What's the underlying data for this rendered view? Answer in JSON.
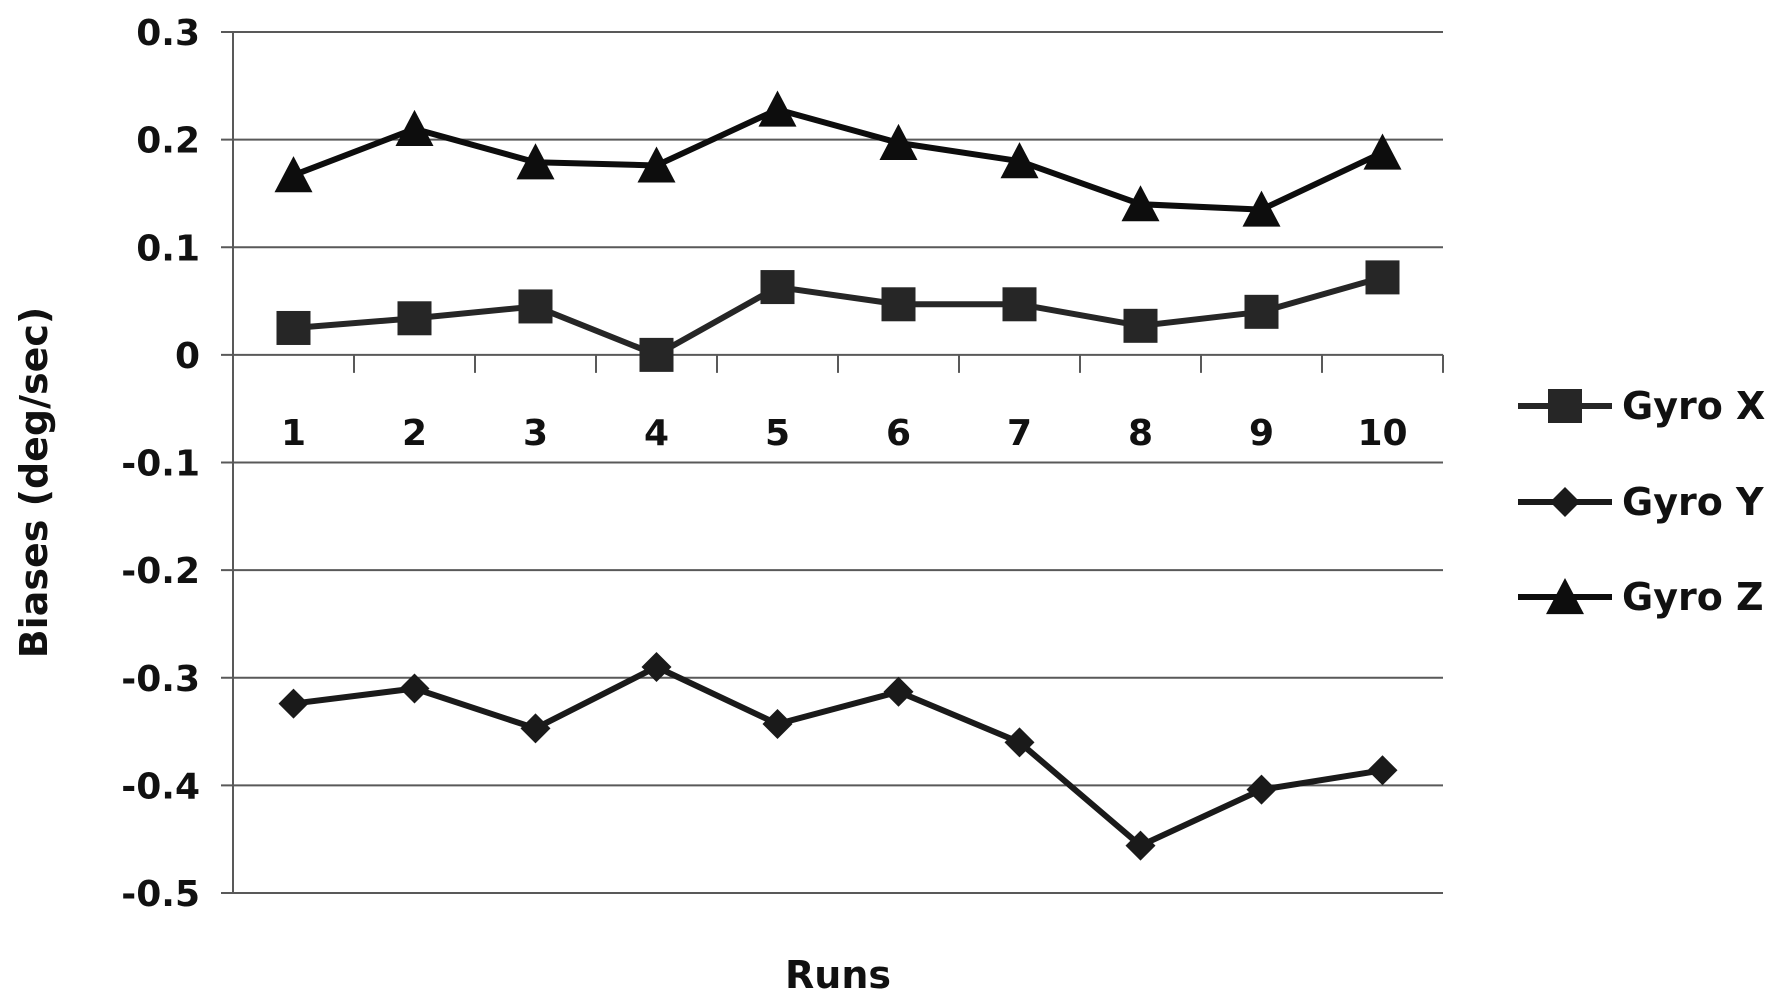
{
  "chart_data": {
    "type": "line",
    "title": "",
    "xlabel": "Runs",
    "ylabel": "Biases (deg/sec)",
    "categories": [
      "1",
      "2",
      "3",
      "4",
      "5",
      "6",
      "7",
      "8",
      "9",
      "10"
    ],
    "ylim": [
      -0.5,
      0.3
    ],
    "yticks": [
      "0.3",
      "0.2",
      "0.1",
      "0",
      "-0.1",
      "-0.2",
      "-0.3",
      "-0.4",
      "-0.5"
    ],
    "ytick_values": [
      0.3,
      0.2,
      0.1,
      0,
      -0.1,
      -0.2,
      -0.3,
      -0.4,
      -0.5
    ],
    "grid": true,
    "legend_position": "right",
    "series": [
      {
        "name": "Gyro X",
        "marker": "square",
        "color": "#262626",
        "values": [
          0.025,
          0.034,
          0.045,
          0.0,
          0.063,
          0.047,
          0.047,
          0.027,
          0.04,
          0.072
        ]
      },
      {
        "name": "Gyro Y",
        "marker": "diamond",
        "color": "#1a1a1a",
        "values": [
          -0.324,
          -0.31,
          -0.347,
          -0.29,
          -0.343,
          -0.313,
          -0.36,
          -0.456,
          -0.404,
          -0.386
        ]
      },
      {
        "name": "Gyro Z",
        "marker": "triangle",
        "color": "#0d0d0d",
        "values": [
          0.167,
          0.21,
          0.179,
          0.176,
          0.228,
          0.197,
          0.18,
          0.14,
          0.135,
          0.188
        ]
      }
    ]
  }
}
